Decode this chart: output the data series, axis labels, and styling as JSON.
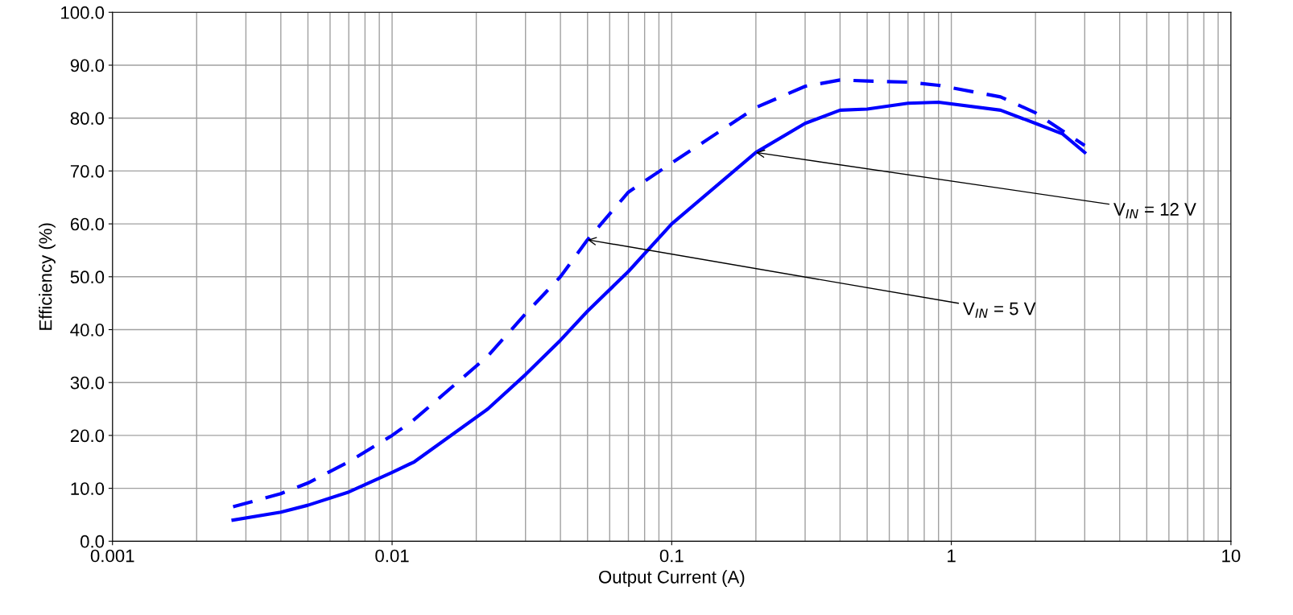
{
  "chart_data": {
    "type": "line",
    "xlabel": "Output Current (A)",
    "ylabel": "Efficiency (%)",
    "log": "x",
    "grid": true,
    "xlim": [
      0.001,
      10
    ],
    "xticks": [
      {
        "value": 0.001,
        "label": "0.001"
      },
      {
        "value": 0.01,
        "label": "0.01"
      },
      {
        "value": 0.1,
        "label": "0.1"
      },
      {
        "value": 1,
        "label": "1"
      },
      {
        "value": 10,
        "label": "10"
      }
    ],
    "ylim": [
      0,
      100
    ],
    "yticks": [
      {
        "value": 0,
        "label": "0.0"
      },
      {
        "value": 10,
        "label": "10.0"
      },
      {
        "value": 20,
        "label": "20.0"
      },
      {
        "value": 30,
        "label": "30.0"
      },
      {
        "value": 40,
        "label": "40.0"
      },
      {
        "value": 50,
        "label": "50.0"
      },
      {
        "value": 60,
        "label": "60.0"
      },
      {
        "value": 70,
        "label": "70.0"
      },
      {
        "value": 80,
        "label": "80.0"
      },
      {
        "value": 90,
        "label": "90.0"
      },
      {
        "value": 100,
        "label": "100.0"
      }
    ],
    "legend": false,
    "series": [
      {
        "color": "#0000ff",
        "line_style": "dashed",
        "x": [
          0.0027,
          0.004,
          0.005,
          0.007,
          0.01,
          0.012,
          0.022,
          0.03,
          0.04,
          0.05,
          0.07,
          0.1,
          0.2,
          0.3,
          0.4,
          0.5,
          0.7,
          0.9,
          1.5,
          2,
          3
        ],
        "values": [
          6.5,
          9,
          11,
          15,
          20,
          23,
          35,
          43,
          50,
          57,
          66,
          71.5,
          82,
          86,
          87.2,
          87,
          86.8,
          86.2,
          84,
          81,
          74.8
        ]
      },
      {
        "color": "#0000ff",
        "line_style": "solid",
        "x": [
          0.0027,
          0.004,
          0.005,
          0.007,
          0.01,
          0.012,
          0.022,
          0.03,
          0.04,
          0.05,
          0.07,
          0.1,
          0.2,
          0.3,
          0.4,
          0.5,
          0.7,
          0.9,
          1.5,
          2,
          2.5,
          3
        ],
        "values": [
          4,
          5.5,
          6.8,
          9.3,
          13,
          15,
          25,
          31.5,
          38,
          43.5,
          51,
          60,
          73.5,
          79,
          81.5,
          81.7,
          82.8,
          83,
          81.5,
          79,
          77,
          73.5
        ]
      }
    ],
    "annotations": [
      {
        "text": "V$_{IN}$ = 12 V",
        "x": 0.2,
        "y": 73.5
      },
      {
        "text": "V$_{IN}$ = 5 V",
        "x": 0.05,
        "y": 57
      }
    ]
  }
}
